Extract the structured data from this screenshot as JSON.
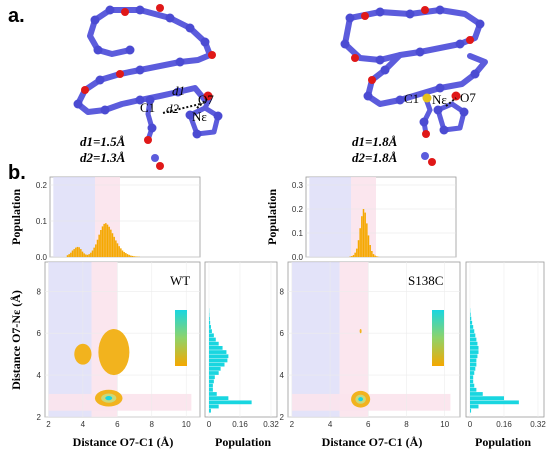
{
  "panel_labels": {
    "a": "a.",
    "b": "b."
  },
  "structures": [
    {
      "atom_c1": "C1",
      "atom_o7": "O7",
      "atom_ne": "Nε",
      "d1_symbol": "d1",
      "d2_symbol": "d2",
      "d1_line": "d1=1.5Å",
      "d2_line": "d2=1.3Å"
    },
    {
      "atom_c1": "C1",
      "atom_o7": "O7",
      "atom_ne": "Nε",
      "d1_line": "d1=1.8Å",
      "d2_line": "d2=1.8Å"
    }
  ],
  "axis_titles": {
    "x": "Distance O7-C1 (Å)",
    "y": "Distance O7-Nε (Å)",
    "population": "Population"
  },
  "colors": {
    "histogram": "#f5a800",
    "marginal": "#19d6e0",
    "contour": "#f2b31e",
    "blue_band": "#dcdcf8",
    "pink_band": "#fbe3ec",
    "structure": "#5c5cdc"
  },
  "chart_data": [
    {
      "type": "bar",
      "variant": "WT",
      "title": "",
      "xlabel": "",
      "ylabel": "Population",
      "x": [
        2.85,
        2.95,
        3.05,
        3.15,
        3.25,
        3.35,
        3.45,
        3.55,
        3.65,
        3.75,
        3.85,
        3.95,
        4.05,
        4.15,
        4.25,
        4.35,
        4.45,
        4.55,
        4.65,
        4.75,
        4.85,
        4.95,
        5.05,
        5.15,
        5.25,
        5.35,
        5.45,
        5.55,
        5.65,
        5.75,
        5.85,
        5.95,
        6.05,
        6.15,
        6.25,
        6.35,
        6.45,
        6.55,
        6.65,
        6.75,
        6.85,
        6.95,
        7.05,
        7.15
      ],
      "values": [
        0.005,
        0.008,
        0.012,
        0.018,
        0.022,
        0.026,
        0.028,
        0.027,
        0.022,
        0.015,
        0.01,
        0.007,
        0.006,
        0.008,
        0.012,
        0.018,
        0.026,
        0.035,
        0.048,
        0.062,
        0.075,
        0.085,
        0.092,
        0.094,
        0.09,
        0.084,
        0.076,
        0.066,
        0.056,
        0.046,
        0.038,
        0.03,
        0.024,
        0.018,
        0.014,
        0.011,
        0.008,
        0.006,
        0.004,
        0.003,
        0.002,
        0.0015,
        0.001,
        0.0008
      ],
      "ylim": [
        0,
        0.2
      ],
      "yticks": [
        "0.0",
        "0.1",
        "0.2"
      ]
    },
    {
      "type": "bar",
      "variant": "S138C",
      "title": "",
      "xlabel": "",
      "ylabel": "Population",
      "x": [
        4.45,
        4.55,
        4.65,
        4.75,
        4.85,
        4.95,
        5.05,
        5.15,
        5.25,
        5.35,
        5.45,
        5.55,
        5.65,
        5.75,
        5.85,
        5.95,
        6.05,
        6.15
      ],
      "values": [
        0.002,
        0.004,
        0.008,
        0.018,
        0.035,
        0.07,
        0.12,
        0.17,
        0.2,
        0.185,
        0.14,
        0.09,
        0.05,
        0.025,
        0.012,
        0.006,
        0.003,
        0.001
      ],
      "ylim": [
        0,
        0.3
      ],
      "yticks": [
        "0.0",
        "0.1",
        "0.2",
        "0.3"
      ]
    },
    {
      "type": "contour",
      "variant": "WT",
      "xlabel": "Distance O7-C1 (Å)",
      "ylabel": "Distance O7-Nε (Å)",
      "xlim": [
        1.8,
        10.8
      ],
      "ylim": [
        2.0,
        9.4
      ],
      "xticks": [
        2,
        4,
        6,
        8,
        10
      ],
      "yticks": [
        2,
        4,
        6,
        8
      ],
      "blue_band_x": [
        2.0,
        4.5
      ],
      "pink_band_x": [
        4.5,
        6.0
      ],
      "pink_band_y": [
        2.3,
        3.1
      ],
      "clusters": [
        {
          "x": 4.0,
          "y": 5.0,
          "rx": 0.5,
          "ry": 0.5,
          "level": "low"
        },
        {
          "x": 5.8,
          "y": 5.1,
          "rx": 0.9,
          "ry": 1.1,
          "level": "low"
        },
        {
          "x": 5.5,
          "y": 2.9,
          "rx": 0.8,
          "ry": 0.4,
          "level": "high"
        }
      ]
    },
    {
      "type": "bar",
      "variant": "WT",
      "orientation": "horizontal",
      "ylabel": "Population",
      "y": [
        2.3,
        2.5,
        2.7,
        2.9,
        3.1,
        3.3,
        3.5,
        3.7,
        3.9,
        4.1,
        4.3,
        4.5,
        4.7,
        4.9,
        5.1,
        5.3,
        5.5,
        5.7,
        5.9,
        6.1,
        6.3,
        6.5,
        6.7,
        6.9,
        7.1
      ],
      "values": [
        0.01,
        0.05,
        0.22,
        0.1,
        0.04,
        0.02,
        0.02,
        0.025,
        0.03,
        0.05,
        0.06,
        0.08,
        0.095,
        0.1,
        0.09,
        0.07,
        0.05,
        0.035,
        0.025,
        0.015,
        0.01,
        0.006,
        0.004,
        0.002,
        0.001
      ],
      "xlim": [
        0,
        0.32
      ],
      "xticks": [
        "0",
        "0.16",
        "0.32"
      ]
    },
    {
      "type": "contour",
      "variant": "S138C",
      "xlabel": "Distance O7-C1 (Å)",
      "ylabel": "",
      "xlim": [
        1.8,
        10.8
      ],
      "ylim": [
        2.0,
        9.4
      ],
      "xticks": [
        2,
        4,
        6,
        8,
        10
      ],
      "yticks": [
        2,
        4,
        6,
        8
      ],
      "blue_band_x": [
        2.0,
        4.5
      ],
      "pink_band_x": [
        4.5,
        6.0
      ],
      "pink_band_y": [
        2.3,
        3.1
      ],
      "clusters": [
        {
          "x": 5.6,
          "y": 2.85,
          "rx": 0.5,
          "ry": 0.4,
          "level": "high"
        },
        {
          "x": 5.6,
          "y": 6.1,
          "rx": 0.05,
          "ry": 0.1,
          "level": "low"
        }
      ]
    },
    {
      "type": "bar",
      "variant": "S138C",
      "orientation": "horizontal",
      "ylabel": "Population",
      "y": [
        2.3,
        2.5,
        2.7,
        2.9,
        3.1,
        3.3,
        3.5,
        3.7,
        3.9,
        4.1,
        4.3,
        4.5,
        4.7,
        4.9,
        5.1,
        5.3,
        5.5,
        5.7,
        5.9,
        6.1,
        6.3,
        6.5,
        6.7,
        6.9,
        7.1
      ],
      "values": [
        0.005,
        0.04,
        0.23,
        0.16,
        0.06,
        0.03,
        0.02,
        0.015,
        0.015,
        0.02,
        0.025,
        0.03,
        0.03,
        0.035,
        0.04,
        0.04,
        0.035,
        0.03,
        0.025,
        0.02,
        0.015,
        0.01,
        0.006,
        0.003,
        0.001
      ],
      "xlim": [
        0,
        0.32
      ],
      "xticks": [
        "0",
        "0.16",
        "0.32"
      ]
    }
  ]
}
